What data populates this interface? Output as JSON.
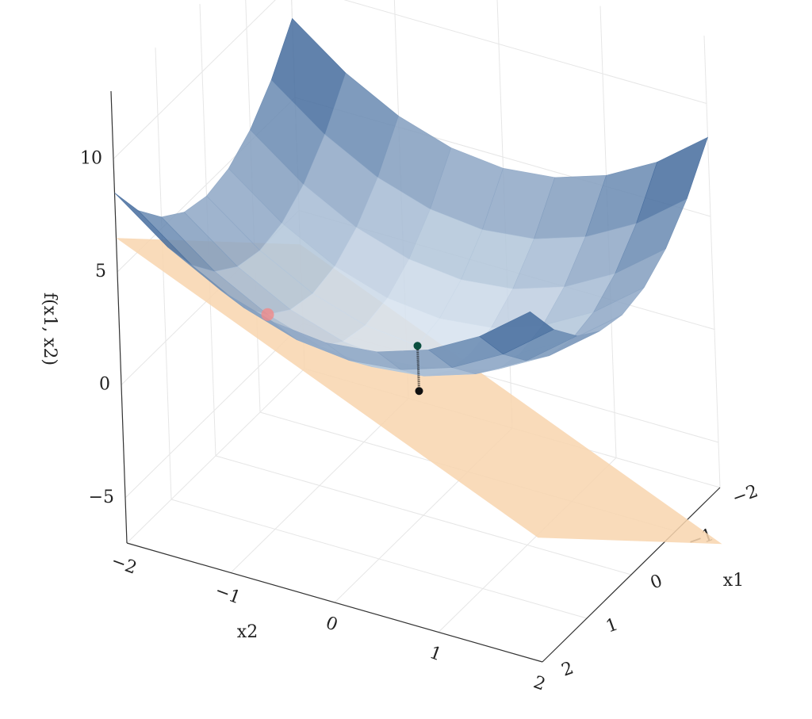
{
  "chart_data": {
    "type": "surface3d",
    "xlabel": "x1",
    "ylabel": "x2",
    "zlabel": "f(x1, x2)",
    "xlim": [
      -2,
      2
    ],
    "ylim": [
      -2,
      2
    ],
    "zlim": [
      -7,
      13
    ],
    "xticks": [
      {
        "value": -2,
        "label": "−2"
      },
      {
        "value": -1,
        "label": "−1"
      },
      0,
      1,
      2
    ],
    "yticks": [
      {
        "value": -2,
        "label": "−2"
      },
      {
        "value": -1,
        "label": "−1"
      },
      0,
      1,
      2
    ],
    "zticks": [
      {
        "value": -5,
        "label": "−5"
      },
      0,
      5,
      10
    ],
    "grid": true,
    "surface": {
      "x1": [
        -2,
        -1.5,
        -1,
        -0.5,
        0,
        0.5,
        1,
        1.5,
        2
      ],
      "x2": [
        -2,
        -1.5,
        -1,
        -0.5,
        0,
        0.5,
        1,
        1.5,
        2
      ],
      "z": [
        [
          8.5,
          6.75,
          5.5,
          4.75,
          4.5,
          4.75,
          5.5,
          6.75,
          8.5
        ],
        [
          6.75,
          5,
          3.75,
          3,
          2.75,
          3,
          3.75,
          5,
          6.75
        ],
        [
          5.5,
          3.75,
          2.5,
          1.75,
          1.5,
          1.75,
          2.5,
          3.75,
          5.5
        ],
        [
          4.75,
          3,
          1.75,
          1,
          0.75,
          1,
          1.75,
          3,
          4.75
        ],
        [
          4.5,
          2.75,
          1.5,
          0.75,
          0.5,
          0.75,
          1.5,
          2.75,
          4.5
        ],
        [
          4.75,
          3,
          1.75,
          1,
          0.75,
          1,
          1.75,
          3,
          4.75
        ],
        [
          5.5,
          3.75,
          2.5,
          1.75,
          1.5,
          1.75,
          2.5,
          3.75,
          5.5
        ],
        [
          6.75,
          5,
          3.75,
          3,
          2.75,
          3,
          3.75,
          5,
          6.75
        ],
        [
          8.5,
          6.75,
          5.5,
          4.75,
          4.5,
          4.75,
          5.5,
          6.75,
          8.5
        ]
      ],
      "colors": [
        "#dce7f1",
        "#1b4a85"
      ]
    },
    "plane": {
      "x1": [
        -2,
        2
      ],
      "x2": [
        -2,
        2
      ],
      "z": [
        [
          -1.5,
          -9.5
        ],
        [
          6.5,
          -1.5
        ]
      ],
      "color": "#f8d5ae"
    },
    "points": [
      {
        "x1": 1,
        "x2": -1,
        "z": 2.5,
        "color": "#f08a8a"
      },
      {
        "x1": 0,
        "x2": 0,
        "z": 0.5,
        "color": "#0b4f3f"
      },
      {
        "x1": 0,
        "x2": 0,
        "z": -1.5,
        "color": "#111111"
      }
    ]
  }
}
